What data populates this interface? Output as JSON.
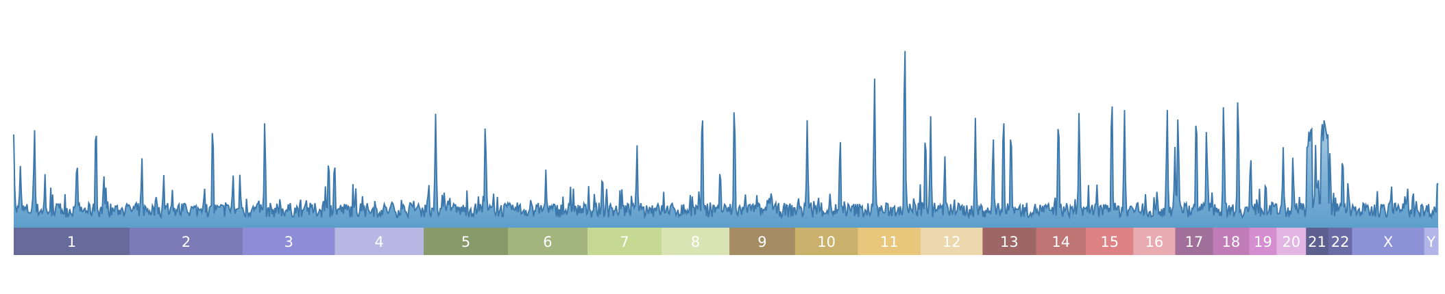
{
  "chart_data": {
    "type": "area",
    "title": "",
    "xlabel": "",
    "ylabel": "",
    "ylim": [
      0,
      1
    ],
    "grid": false,
    "legend": "none",
    "line_color": "#3d78ad",
    "fill_top_color": "#dce9f3",
    "fill_bottom_color": "#5d9ecb",
    "chromosomes": [
      {
        "label": "1",
        "length": 249,
        "color": "#686b99"
      },
      {
        "label": "2",
        "length": 243,
        "color": "#7b7bb8"
      },
      {
        "label": "3",
        "length": 198,
        "color": "#8c8dd6"
      },
      {
        "label": "4",
        "length": 191,
        "color": "#b6b7e3"
      },
      {
        "label": "5",
        "length": 181,
        "color": "#879a6a"
      },
      {
        "label": "6",
        "length": 171,
        "color": "#a3b57e"
      },
      {
        "label": "7",
        "length": 159,
        "color": "#c5d993"
      },
      {
        "label": "8",
        "length": 146,
        "color": "#d9e3b3"
      },
      {
        "label": "9",
        "length": 141,
        "color": "#a58c63"
      },
      {
        "label": "10",
        "length": 135,
        "color": "#c9b16c"
      },
      {
        "label": "11",
        "length": 135,
        "color": "#e8c67c"
      },
      {
        "label": "12",
        "length": 133,
        "color": "#edd8ae"
      },
      {
        "label": "13",
        "length": 115,
        "color": "#9e6766"
      },
      {
        "label": "14",
        "length": 107,
        "color": "#c07575"
      },
      {
        "label": "15",
        "length": 102,
        "color": "#dd8285"
      },
      {
        "label": "16",
        "length": 90,
        "color": "#e9abb2"
      },
      {
        "label": "17",
        "length": 81,
        "color": "#a06f9a"
      },
      {
        "label": "18",
        "length": 78,
        "color": "#c07cb6"
      },
      {
        "label": "19",
        "length": 59,
        "color": "#d58ed0"
      },
      {
        "label": "20",
        "length": 63,
        "color": "#e3b5e3"
      },
      {
        "label": "21",
        "length": 48,
        "color": "#5d5f8e"
      },
      {
        "label": "22",
        "length": 51,
        "color": "#6b6ca5"
      },
      {
        "label": "X",
        "length": 155,
        "color": "#8d91d6"
      },
      {
        "label": "Y",
        "length": 30,
        "color": "#b2b5e8"
      }
    ],
    "baseline": 0.05,
    "noise": 0.07,
    "peaks": [
      {
        "x": 0.0,
        "y": 0.45
      },
      {
        "x": 14.1,
        "y": 0.3
      },
      {
        "x": 44.6,
        "y": 0.48
      },
      {
        "x": 67.2,
        "y": 0.26
      },
      {
        "x": 135.9,
        "y": 0.34
      },
      {
        "x": 176.7,
        "y": 0.53
      },
      {
        "x": 193.5,
        "y": 0.26
      },
      {
        "x": 275.4,
        "y": 0.34
      },
      {
        "x": 322.3,
        "y": 0.26
      },
      {
        "x": 427.6,
        "y": 0.52
      },
      {
        "x": 471.3,
        "y": 0.26
      },
      {
        "x": 486.3,
        "y": 0.26
      },
      {
        "x": 539.5,
        "y": 0.52
      },
      {
        "x": 676.8,
        "y": 0.35
      },
      {
        "x": 689.3,
        "y": 0.34
      },
      {
        "x": 906.7,
        "y": 0.55
      },
      {
        "x": 1013.5,
        "y": 0.52
      },
      {
        "x": 1014.8,
        "y": 0.36
      },
      {
        "x": 1143.6,
        "y": 0.28
      },
      {
        "x": 1265.0,
        "y": 0.27
      },
      {
        "x": 1339.4,
        "y": 0.4
      },
      {
        "x": 1479.6,
        "y": 0.6
      },
      {
        "x": 1518.1,
        "y": 0.3
      },
      {
        "x": 1548.6,
        "y": 0.62
      },
      {
        "x": 1705.2,
        "y": 0.52
      },
      {
        "x": 1775.9,
        "y": 0.45
      },
      {
        "x": 1849.8,
        "y": 0.73
      },
      {
        "x": 1914.8,
        "y": 0.92
      },
      {
        "x": 1959.2,
        "y": 0.48
      },
      {
        "x": 1970.4,
        "y": 0.54
      },
      {
        "x": 2000.9,
        "y": 0.35
      },
      {
        "x": 2066.5,
        "y": 0.53
      },
      {
        "x": 2104.8,
        "y": 0.45
      },
      {
        "x": 2127.0,
        "y": 0.57
      },
      {
        "x": 2143.0,
        "y": 0.5
      },
      {
        "x": 2245.1,
        "y": 0.56
      },
      {
        "x": 2289.5,
        "y": 0.57
      },
      {
        "x": 2359.8,
        "y": 0.66
      },
      {
        "x": 2387.0,
        "y": 0.57
      },
      {
        "x": 2478.7,
        "y": 0.58
      },
      {
        "x": 2495.3,
        "y": 0.39
      },
      {
        "x": 2502.0,
        "y": 0.55
      },
      {
        "x": 2541.2,
        "y": 0.58
      },
      {
        "x": 2563.3,
        "y": 0.49
      },
      {
        "x": 2600.0,
        "y": 0.61
      },
      {
        "x": 2630.8,
        "y": 0.66
      },
      {
        "x": 2658.0,
        "y": 0.36
      },
      {
        "x": 2728.0,
        "y": 0.39
      },
      {
        "x": 2749.0,
        "y": 0.35
      },
      {
        "x": 2797.7,
        "y": 0.4
      },
      {
        "x": 2802.9,
        "y": 0.26
      },
      {
        "x": 2828.6,
        "y": 0.37
      },
      {
        "x": 2855.7,
        "y": 0.37
      },
      {
        "x": 2867.6,
        "y": 0.23
      },
      {
        "x": 2930.0,
        "y": 0.18
      },
      {
        "x": 2960.4,
        "y": 0.21
      },
      {
        "x": 2995.1,
        "y": 0.2
      },
      {
        "x": 3060.0,
        "y": 0.26
      }
    ],
    "plateaus": [
      {
        "from": 2778.0,
        "to": 2791.0,
        "y": 0.48
      },
      {
        "from": 2809.0,
        "to": 2825.0,
        "y": 0.52
      }
    ]
  }
}
